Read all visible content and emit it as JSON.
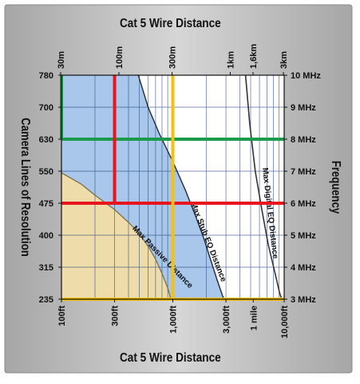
{
  "chart_data": {
    "type": "line",
    "title_top": "Cat 5  Wire Distance",
    "title_bottom": "Cat 5  Wire Distance",
    "ylabel_left": "Camera Lines of Resolution",
    "ylabel_right": "Frequency",
    "x_scale": "log",
    "grid": true,
    "top_axis_ticks": [
      {
        "label": "30m",
        "value_ft": 98.4
      },
      {
        "label": "100m",
        "value_ft": 328
      },
      {
        "label": "300m",
        "value_ft": 984
      },
      {
        "label": "1km",
        "value_ft": 3281
      },
      {
        "label": "1,6km",
        "value_ft": 5250
      },
      {
        "label": "3km",
        "value_ft": 9843
      }
    ],
    "bottom_axis_ticks": [
      {
        "label": "100ft",
        "value_ft": 100
      },
      {
        "label": "300ft",
        "value_ft": 300
      },
      {
        "label": "1,000ft",
        "value_ft": 1000
      },
      {
        "label": "3,000ft",
        "value_ft": 3000
      },
      {
        "label": "1 mile",
        "value_ft": 5280
      },
      {
        "label": "10,000ft",
        "value_ft": 10000
      }
    ],
    "left_axis_ticks": [
      "780",
      "700",
      "630",
      "550",
      "475",
      "400",
      "315",
      "235"
    ],
    "right_axis_ticks": [
      "10 MHz",
      "9 MHz",
      "8 MHz",
      "7 MHz",
      "6 MHz",
      "5 MHz",
      "4 MHz",
      "3 MHz"
    ],
    "freq_to_lines": [
      {
        "mhz": 10,
        "lines": 780
      },
      {
        "mhz": 9,
        "lines": 700
      },
      {
        "mhz": 8,
        "lines": 630
      },
      {
        "mhz": 7,
        "lines": 550
      },
      {
        "mhz": 6,
        "lines": 475
      },
      {
        "mhz": 5,
        "lines": 400
      },
      {
        "mhz": 4,
        "lines": 315
      },
      {
        "mhz": 3,
        "lines": 235
      }
    ],
    "series": [
      {
        "name": "Max Passive Distance",
        "color": "#eeddaa",
        "points": [
          {
            "ft": 100,
            "mhz": 6.95
          },
          {
            "ft": 150,
            "mhz": 6.6
          },
          {
            "ft": 200,
            "mhz": 6.25
          },
          {
            "ft": 300,
            "mhz": 5.8
          },
          {
            "ft": 400,
            "mhz": 5.4
          },
          {
            "ft": 500,
            "mhz": 5.05
          },
          {
            "ft": 600,
            "mhz": 4.65
          },
          {
            "ft": 700,
            "mhz": 4.25
          },
          {
            "ft": 800,
            "mhz": 3.8
          },
          {
            "ft": 900,
            "mhz": 3.35
          },
          {
            "ft": 960,
            "mhz": 3.0
          }
        ]
      },
      {
        "name": "Max Stub EQ Distance",
        "color": "#a9c7ea",
        "points": [
          {
            "ft": 490,
            "mhz": 10.0
          },
          {
            "ft": 600,
            "mhz": 9.0
          },
          {
            "ft": 750,
            "mhz": 8.2
          },
          {
            "ft": 1000,
            "mhz": 7.3
          },
          {
            "ft": 1300,
            "mhz": 6.4
          },
          {
            "ft": 1600,
            "mhz": 5.6
          },
          {
            "ft": 1900,
            "mhz": 4.9
          },
          {
            "ft": 2200,
            "mhz": 4.2
          },
          {
            "ft": 2500,
            "mhz": 3.6
          },
          {
            "ft": 2800,
            "mhz": 3.1
          },
          {
            "ft": 2900,
            "mhz": 3.0
          }
        ]
      },
      {
        "name": "Max Digital EQ Distance",
        "color": "#333333",
        "points": [
          {
            "ft": 4500,
            "mhz": 10.0
          },
          {
            "ft": 4900,
            "mhz": 8.5
          },
          {
            "ft": 5500,
            "mhz": 7.0
          },
          {
            "ft": 6300,
            "mhz": 5.8
          },
          {
            "ft": 7200,
            "mhz": 4.7
          },
          {
            "ft": 8300,
            "mhz": 3.8
          },
          {
            "ft": 9100,
            "mhz": 3.2
          },
          {
            "ft": 9500,
            "mhz": 3.0
          }
        ]
      }
    ],
    "curve_labels": [
      {
        "text": "Max Passive Distance",
        "series": "Max Passive Distance",
        "at_ft": 430,
        "at_mhz": 5.2
      },
      {
        "text": "Max Stub EQ Distance",
        "series": "Max Stub EQ Distance",
        "at_ft": 1450,
        "at_mhz": 6.0
      },
      {
        "text": "Max Digital EQ Distance",
        "series": "Max Digital EQ Distance",
        "at_ft": 6400,
        "at_mhz": 7.1
      }
    ],
    "highlight_lines": [
      {
        "color": "#1a9b4b",
        "lines": 630,
        "ft": 100
      },
      {
        "color": "#e8141e",
        "lines": 475,
        "ft": 300
      },
      {
        "color": "#f6c10b",
        "lines": 235,
        "ft": 1000
      }
    ]
  }
}
